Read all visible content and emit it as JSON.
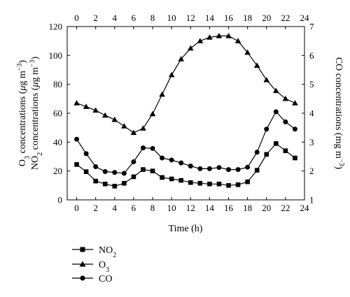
{
  "chart_data": {
    "type": "line",
    "xlabel": "Time (h)",
    "ylabel_left": "O3 concentrations (μg m−3) / NO2 concentrations (μg m−3)",
    "ylabel_right": "CO concentrations (mg m−3)",
    "xlim": [
      -1,
      24
    ],
    "ylim_left": [
      0,
      120
    ],
    "ylim_right": [
      1,
      7
    ],
    "x_ticks": [
      0,
      2,
      4,
      6,
      8,
      10,
      12,
      14,
      16,
      18,
      20,
      22,
      24
    ],
    "x_top_ticks": [
      0,
      2,
      4,
      6,
      8,
      10,
      12,
      14,
      16,
      18,
      20,
      22,
      24
    ],
    "y_left_ticks": [
      0,
      20,
      40,
      60,
      80,
      100,
      120
    ],
    "y_right_ticks": [
      1,
      2,
      3,
      4,
      5,
      6,
      7
    ],
    "grid": false,
    "legend_position": "below-left",
    "x": [
      0,
      1,
      2,
      3,
      4,
      5,
      6,
      7,
      8,
      9,
      10,
      11,
      12,
      13,
      14,
      15,
      16,
      17,
      18,
      19,
      20,
      21,
      22,
      23
    ],
    "series": [
      {
        "name": "NO2",
        "marker": "square",
        "axis": "left",
        "values": [
          24.5,
          19.5,
          13,
          11,
          9.5,
          11.5,
          16,
          21,
          20,
          15.5,
          14.5,
          13.5,
          12,
          11.5,
          11,
          11,
          10,
          10.5,
          12.5,
          20.5,
          31.5,
          39,
          34,
          29
        ]
      },
      {
        "name": "O3",
        "marker": "triangle",
        "axis": "left",
        "values": [
          67,
          64.5,
          62,
          58.5,
          55.5,
          51,
          46.5,
          49.5,
          59.5,
          73,
          86.5,
          97.5,
          105,
          110,
          112.5,
          113.5,
          113.5,
          110,
          102,
          93,
          83,
          75.5,
          70,
          67
        ]
      },
      {
        "name": "CO",
        "marker": "circle",
        "axis": "right",
        "values": [
          3.1,
          2.6,
          2.15,
          1.98,
          1.95,
          1.92,
          2.32,
          2.8,
          2.78,
          2.45,
          2.38,
          2.28,
          2.17,
          2.08,
          2.08,
          2.12,
          2.05,
          2.05,
          2.13,
          2.65,
          3.45,
          4.05,
          3.7,
          3.45
        ]
      }
    ]
  }
}
